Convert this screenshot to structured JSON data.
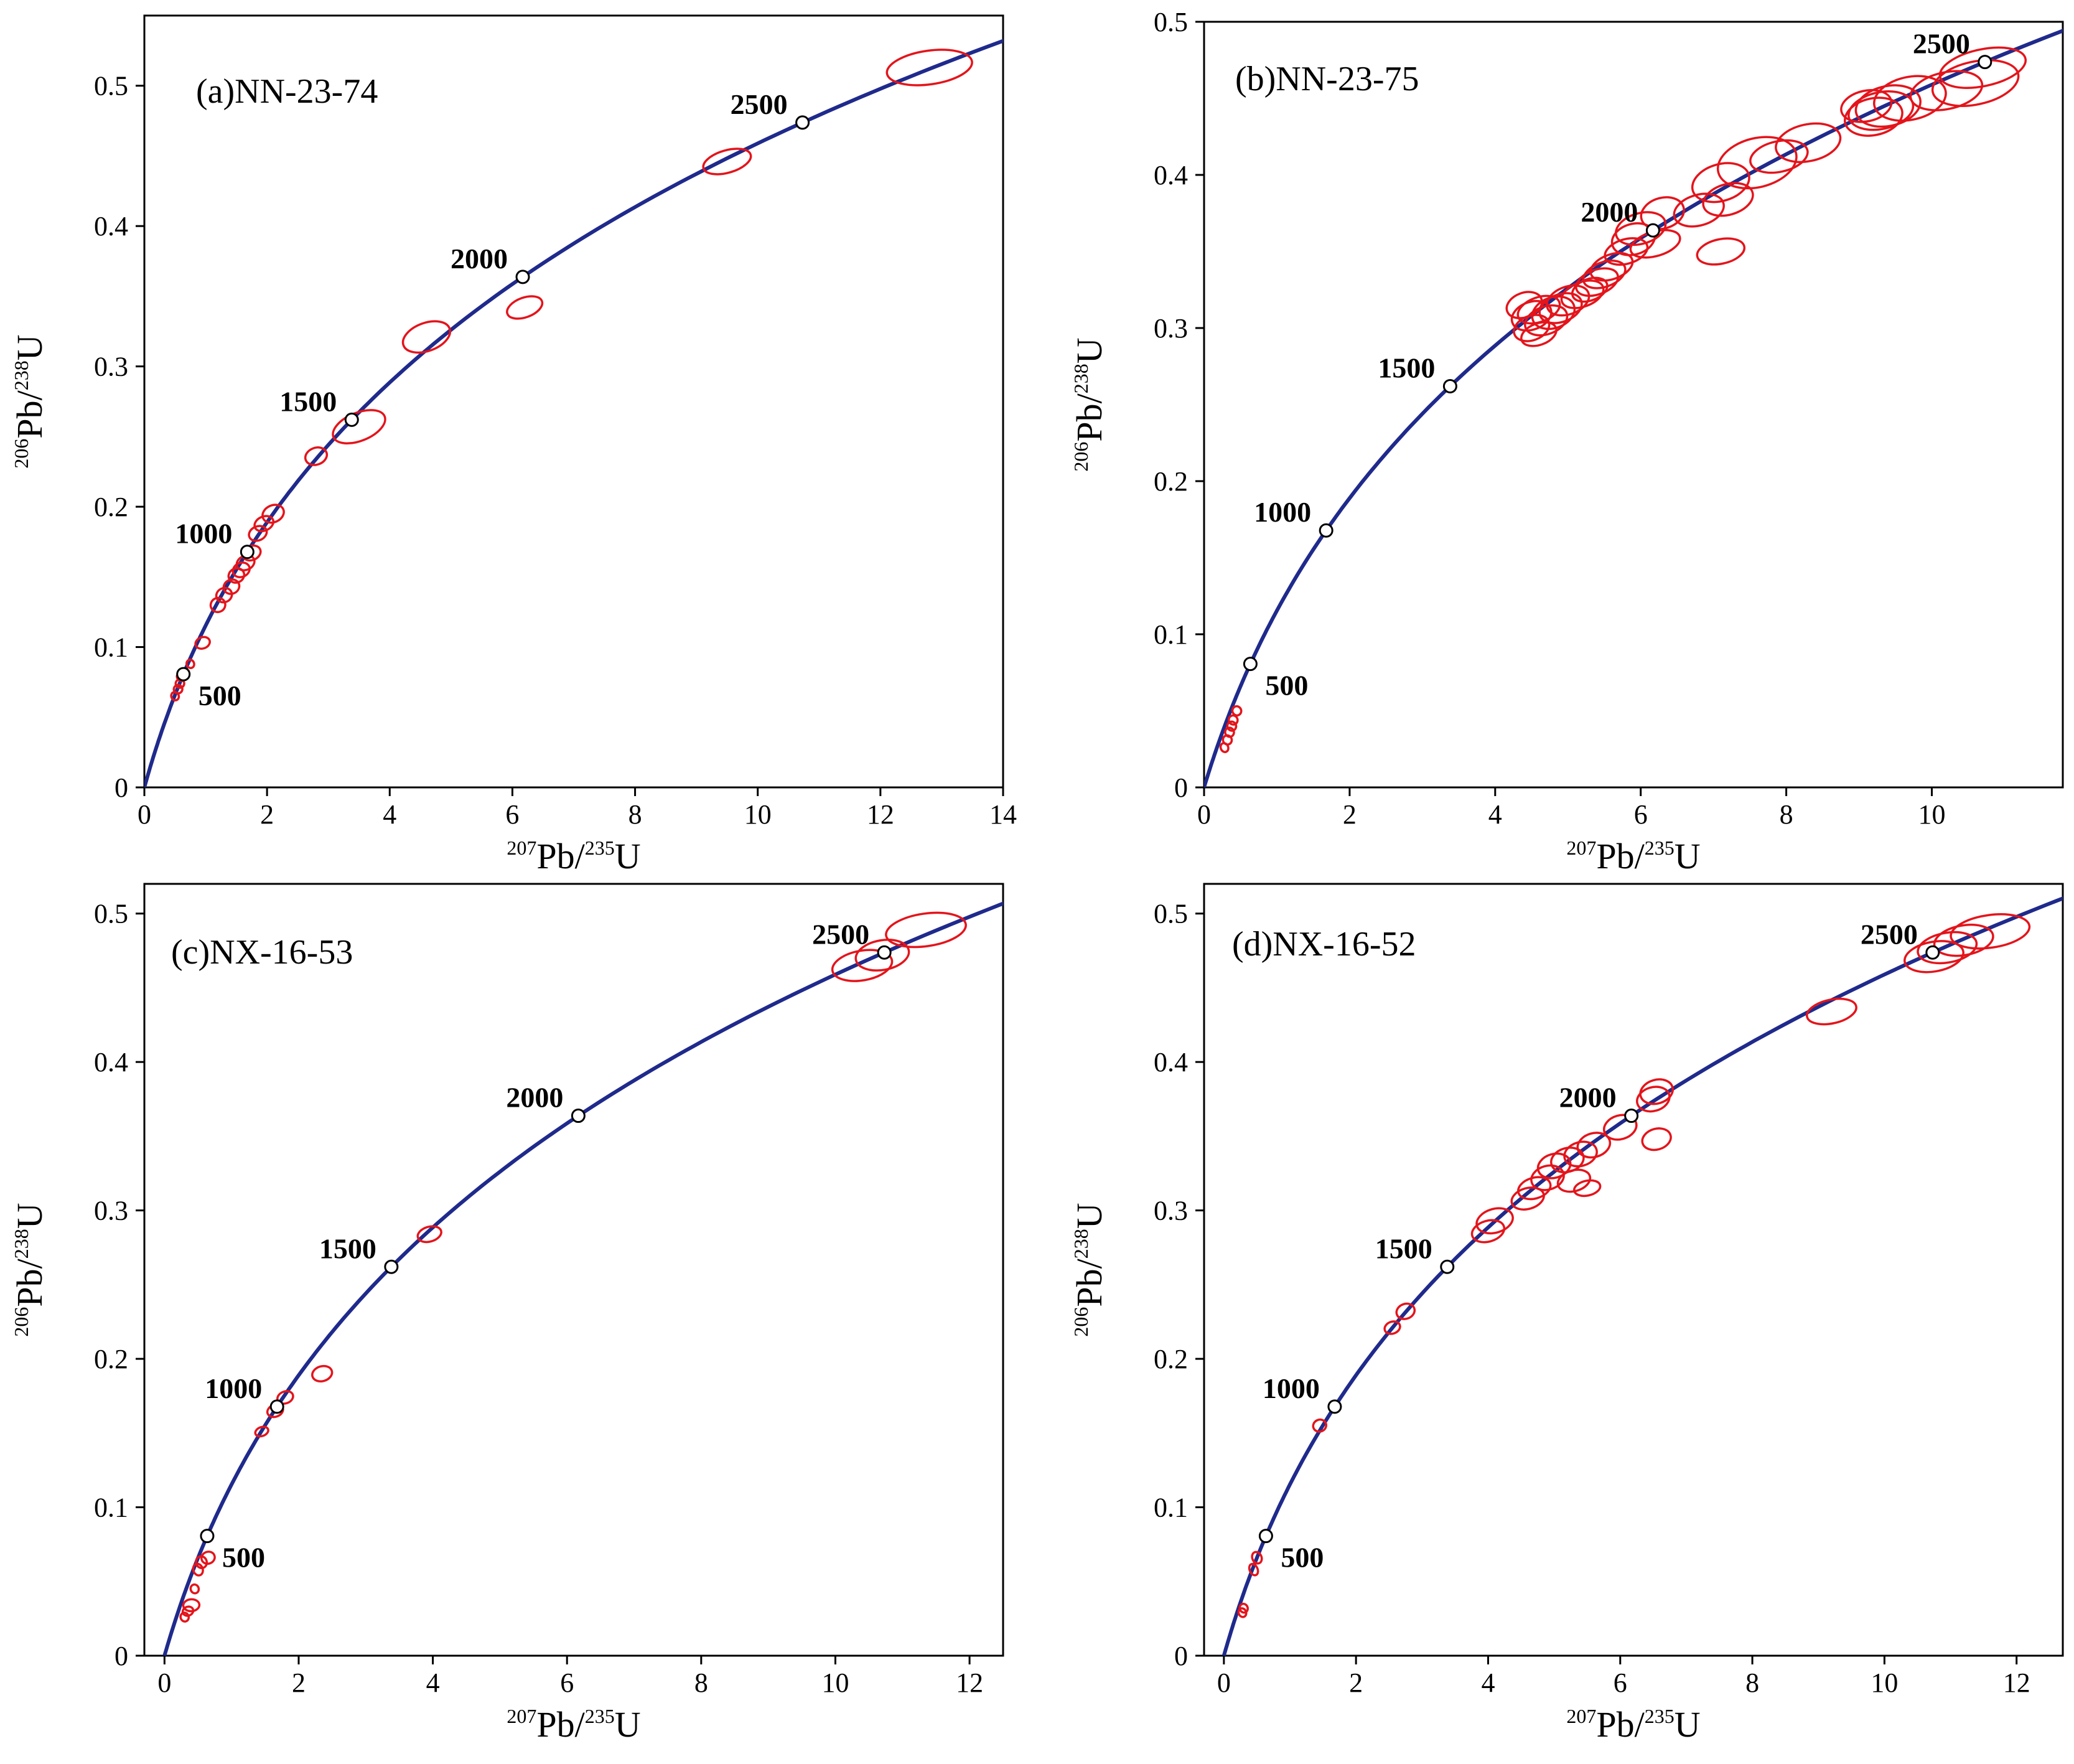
{
  "colors": {
    "concordia": "#1f2a8c",
    "ellipse": "#e4141b",
    "marker_fill": "#ffffff",
    "axis": "#000000"
  },
  "axis_titles": {
    "x": {
      "sup1": "207",
      "main1": "Pb/",
      "sup2": "235",
      "main2": "U"
    },
    "y": {
      "sup1": "206",
      "main1": "Pb/",
      "sup2": "238",
      "main2": "U"
    }
  },
  "chart_data": [
    {
      "type": "scatter",
      "subtype": "concordia-diagram",
      "title": "(a)NN-23-74",
      "xlabel": "207Pb/235U",
      "ylabel": "206Pb/238U",
      "xlim": [
        0,
        14
      ],
      "ylim": [
        0,
        0.55
      ],
      "xticks": [
        0,
        2,
        4,
        6,
        8,
        10,
        12,
        14
      ],
      "yticks": [
        0,
        0.1,
        0.2,
        0.3,
        0.4,
        0.5
      ],
      "concordia_ages_Ma": [
        500,
        1000,
        1500,
        2000,
        2500
      ],
      "age_label_side": [
        "right",
        "left",
        "left",
        "left",
        "left"
      ],
      "ellipses": [
        {
          "x": 12.8,
          "y": 0.513,
          "rx": 0.7,
          "ry": 0.012,
          "tilt": 0.2
        },
        {
          "x": 9.5,
          "y": 0.446,
          "rx": 0.4,
          "ry": 0.008,
          "tilt": 0.4
        },
        {
          "x": 4.6,
          "y": 0.321,
          "rx": 0.4,
          "ry": 0.01,
          "tilt": 0.5
        },
        {
          "x": 6.2,
          "y": 0.342,
          "rx": 0.3,
          "ry": 0.007,
          "tilt": 0.5
        },
        {
          "x": 3.5,
          "y": 0.257,
          "rx": 0.45,
          "ry": 0.01,
          "tilt": 0.55
        },
        {
          "x": 2.8,
          "y": 0.236,
          "rx": 0.18,
          "ry": 0.006,
          "tilt": 0.5
        },
        {
          "x": 2.1,
          "y": 0.195,
          "rx": 0.18,
          "ry": 0.006,
          "tilt": 0.6
        },
        {
          "x": 1.95,
          "y": 0.188,
          "rx": 0.16,
          "ry": 0.005,
          "tilt": 0.6
        },
        {
          "x": 1.85,
          "y": 0.181,
          "rx": 0.15,
          "ry": 0.005,
          "tilt": 0.6
        },
        {
          "x": 1.75,
          "y": 0.167,
          "rx": 0.15,
          "ry": 0.005,
          "tilt": 0.6
        },
        {
          "x": 1.65,
          "y": 0.16,
          "rx": 0.15,
          "ry": 0.005,
          "tilt": 0.6
        },
        {
          "x": 1.58,
          "y": 0.155,
          "rx": 0.14,
          "ry": 0.005,
          "tilt": 0.6
        },
        {
          "x": 1.5,
          "y": 0.151,
          "rx": 0.13,
          "ry": 0.005,
          "tilt": 0.6
        },
        {
          "x": 1.42,
          "y": 0.143,
          "rx": 0.13,
          "ry": 0.005,
          "tilt": 0.6
        },
        {
          "x": 1.3,
          "y": 0.137,
          "rx": 0.13,
          "ry": 0.005,
          "tilt": 0.6
        },
        {
          "x": 1.2,
          "y": 0.13,
          "rx": 0.12,
          "ry": 0.005,
          "tilt": 0.6
        },
        {
          "x": 0.95,
          "y": 0.103,
          "rx": 0.12,
          "ry": 0.004,
          "tilt": 0.5
        },
        {
          "x": 0.75,
          "y": 0.088,
          "rx": 0.06,
          "ry": 0.003,
          "tilt": 0.6
        },
        {
          "x": 0.6,
          "y": 0.079,
          "rx": 0.07,
          "ry": 0.003,
          "tilt": 0.6
        },
        {
          "x": 0.58,
          "y": 0.074,
          "rx": 0.07,
          "ry": 0.003,
          "tilt": 0.6
        },
        {
          "x": 0.55,
          "y": 0.07,
          "rx": 0.07,
          "ry": 0.003,
          "tilt": 0.6
        },
        {
          "x": 0.5,
          "y": 0.065,
          "rx": 0.06,
          "ry": 0.003,
          "tilt": 0.6
        }
      ]
    },
    {
      "type": "scatter",
      "subtype": "concordia-diagram",
      "title": "(b)NN-23-75",
      "xlabel": "207Pb/235U",
      "ylabel": "206Pb/238U",
      "xlim": [
        0,
        11.8
      ],
      "ylim": [
        0,
        0.5
      ],
      "xticks": [
        0,
        2,
        4,
        6,
        8,
        10
      ],
      "yticks": [
        0,
        0.1,
        0.2,
        0.3,
        0.4,
        0.5
      ],
      "concordia_ages_Ma": [
        500,
        1000,
        1500,
        2000,
        2500
      ],
      "age_label_side": [
        "right",
        "left",
        "left",
        "left",
        "left"
      ],
      "ellipses": [
        {
          "x": 10.7,
          "y": 0.47,
          "rx": 0.6,
          "ry": 0.012,
          "tilt": 0.3
        },
        {
          "x": 10.6,
          "y": 0.46,
          "rx": 0.6,
          "ry": 0.014,
          "tilt": 0.3
        },
        {
          "x": 10.2,
          "y": 0.455,
          "rx": 0.5,
          "ry": 0.012,
          "tilt": 0.3
        },
        {
          "x": 9.7,
          "y": 0.45,
          "rx": 0.5,
          "ry": 0.014,
          "tilt": 0.3
        },
        {
          "x": 9.4,
          "y": 0.445,
          "rx": 0.45,
          "ry": 0.013,
          "tilt": 0.3
        },
        {
          "x": 9.3,
          "y": 0.442,
          "rx": 0.45,
          "ry": 0.012,
          "tilt": 0.3
        },
        {
          "x": 9.2,
          "y": 0.438,
          "rx": 0.4,
          "ry": 0.012,
          "tilt": 0.3
        },
        {
          "x": 9.1,
          "y": 0.445,
          "rx": 0.35,
          "ry": 0.01,
          "tilt": 0.3
        },
        {
          "x": 8.3,
          "y": 0.421,
          "rx": 0.45,
          "ry": 0.012,
          "tilt": 0.3
        },
        {
          "x": 7.9,
          "y": 0.412,
          "rx": 0.4,
          "ry": 0.01,
          "tilt": 0.3
        },
        {
          "x": 7.6,
          "y": 0.408,
          "rx": 0.55,
          "ry": 0.016,
          "tilt": 0.35
        },
        {
          "x": 7.1,
          "y": 0.395,
          "rx": 0.4,
          "ry": 0.012,
          "tilt": 0.4
        },
        {
          "x": 7.2,
          "y": 0.384,
          "rx": 0.35,
          "ry": 0.01,
          "tilt": 0.4
        },
        {
          "x": 7.1,
          "y": 0.35,
          "rx": 0.33,
          "ry": 0.008,
          "tilt": 0.3
        },
        {
          "x": 6.8,
          "y": 0.377,
          "rx": 0.35,
          "ry": 0.01,
          "tilt": 0.4
        },
        {
          "x": 6.3,
          "y": 0.375,
          "rx": 0.3,
          "ry": 0.01,
          "tilt": 0.4
        },
        {
          "x": 6.0,
          "y": 0.365,
          "rx": 0.35,
          "ry": 0.01,
          "tilt": 0.4
        },
        {
          "x": 5.9,
          "y": 0.358,
          "rx": 0.3,
          "ry": 0.01,
          "tilt": 0.4
        },
        {
          "x": 6.2,
          "y": 0.355,
          "rx": 0.35,
          "ry": 0.008,
          "tilt": 0.4
        },
        {
          "x": 5.8,
          "y": 0.35,
          "rx": 0.3,
          "ry": 0.008,
          "tilt": 0.4
        },
        {
          "x": 5.6,
          "y": 0.34,
          "rx": 0.3,
          "ry": 0.008,
          "tilt": 0.5
        },
        {
          "x": 5.5,
          "y": 0.335,
          "rx": 0.3,
          "ry": 0.008,
          "tilt": 0.5
        },
        {
          "x": 5.4,
          "y": 0.33,
          "rx": 0.3,
          "ry": 0.008,
          "tilt": 0.5
        },
        {
          "x": 5.3,
          "y": 0.325,
          "rx": 0.25,
          "ry": 0.007,
          "tilt": 0.5
        },
        {
          "x": 5.2,
          "y": 0.322,
          "rx": 0.3,
          "ry": 0.008,
          "tilt": 0.5
        },
        {
          "x": 5.0,
          "y": 0.318,
          "rx": 0.3,
          "ry": 0.009,
          "tilt": 0.5
        },
        {
          "x": 4.9,
          "y": 0.313,
          "rx": 0.3,
          "ry": 0.009,
          "tilt": 0.5
        },
        {
          "x": 4.8,
          "y": 0.31,
          "rx": 0.3,
          "ry": 0.01,
          "tilt": 0.5
        },
        {
          "x": 4.7,
          "y": 0.305,
          "rx": 0.3,
          "ry": 0.009,
          "tilt": 0.5
        },
        {
          "x": 4.6,
          "y": 0.312,
          "rx": 0.3,
          "ry": 0.008,
          "tilt": 0.5
        },
        {
          "x": 4.5,
          "y": 0.308,
          "rx": 0.28,
          "ry": 0.009,
          "tilt": 0.5
        },
        {
          "x": 4.5,
          "y": 0.3,
          "rx": 0.25,
          "ry": 0.008,
          "tilt": 0.5
        },
        {
          "x": 4.6,
          "y": 0.296,
          "rx": 0.25,
          "ry": 0.007,
          "tilt": 0.5
        },
        {
          "x": 4.4,
          "y": 0.315,
          "rx": 0.25,
          "ry": 0.008,
          "tilt": 0.5
        },
        {
          "x": 0.45,
          "y": 0.05,
          "rx": 0.06,
          "ry": 0.003,
          "tilt": 0.6
        },
        {
          "x": 0.4,
          "y": 0.044,
          "rx": 0.06,
          "ry": 0.003,
          "tilt": 0.6
        },
        {
          "x": 0.38,
          "y": 0.04,
          "rx": 0.06,
          "ry": 0.003,
          "tilt": 0.6
        },
        {
          "x": 0.35,
          "y": 0.036,
          "rx": 0.06,
          "ry": 0.003,
          "tilt": 0.6
        },
        {
          "x": 0.32,
          "y": 0.031,
          "rx": 0.06,
          "ry": 0.003,
          "tilt": 0.6
        },
        {
          "x": 0.28,
          "y": 0.026,
          "rx": 0.05,
          "ry": 0.003,
          "tilt": 0.6
        }
      ]
    },
    {
      "type": "scatter",
      "subtype": "concordia-diagram",
      "title": "(c)NX-16-53",
      "xlabel": "207Pb/235U",
      "ylabel": "206Pb/238U",
      "xlim": [
        -0.3,
        12.5
      ],
      "ylim": [
        0,
        0.52
      ],
      "xticks": [
        0,
        2,
        4,
        6,
        8,
        10,
        12
      ],
      "yticks": [
        0,
        0.1,
        0.2,
        0.3,
        0.4,
        0.5
      ],
      "concordia_ages_Ma": [
        500,
        1000,
        1500,
        2000,
        2500
      ],
      "age_label_side": [
        "right",
        "left",
        "left",
        "left",
        "left"
      ],
      "ellipses": [
        {
          "x": 11.35,
          "y": 0.489,
          "rx": 0.6,
          "ry": 0.011,
          "tilt": 0.2
        },
        {
          "x": 10.7,
          "y": 0.472,
          "rx": 0.4,
          "ry": 0.01,
          "tilt": 0.25
        },
        {
          "x": 10.4,
          "y": 0.465,
          "rx": 0.45,
          "ry": 0.01,
          "tilt": 0.25
        },
        {
          "x": 3.95,
          "y": 0.284,
          "rx": 0.18,
          "ry": 0.005,
          "tilt": 0.4
        },
        {
          "x": 2.35,
          "y": 0.19,
          "rx": 0.15,
          "ry": 0.005,
          "tilt": 0.4
        },
        {
          "x": 1.8,
          "y": 0.174,
          "rx": 0.12,
          "ry": 0.004,
          "tilt": 0.5
        },
        {
          "x": 1.65,
          "y": 0.165,
          "rx": 0.12,
          "ry": 0.004,
          "tilt": 0.5
        },
        {
          "x": 1.45,
          "y": 0.151,
          "rx": 0.1,
          "ry": 0.003,
          "tilt": 0.5
        },
        {
          "x": 0.65,
          "y": 0.066,
          "rx": 0.1,
          "ry": 0.004,
          "tilt": 0.5
        },
        {
          "x": 0.55,
          "y": 0.063,
          "rx": 0.08,
          "ry": 0.004,
          "tilt": 0.5
        },
        {
          "x": 0.5,
          "y": 0.058,
          "rx": 0.07,
          "ry": 0.004,
          "tilt": 0.5
        },
        {
          "x": 0.45,
          "y": 0.045,
          "rx": 0.06,
          "ry": 0.003,
          "tilt": 0.5
        },
        {
          "x": 0.4,
          "y": 0.034,
          "rx": 0.12,
          "ry": 0.004,
          "tilt": 0.1
        },
        {
          "x": 0.35,
          "y": 0.03,
          "rx": 0.08,
          "ry": 0.003,
          "tilt": 0.5
        },
        {
          "x": 0.3,
          "y": 0.026,
          "rx": 0.06,
          "ry": 0.003,
          "tilt": 0.5
        }
      ]
    },
    {
      "type": "scatter",
      "subtype": "concordia-diagram",
      "title": "(d)NX-16-52",
      "xlabel": "207Pb/235U",
      "ylabel": "206Pb/238U",
      "xlim": [
        -0.3,
        12.7
      ],
      "ylim": [
        0,
        0.52
      ],
      "xticks": [
        0,
        2,
        4,
        6,
        8,
        10,
        12
      ],
      "yticks": [
        0,
        0.1,
        0.2,
        0.3,
        0.4,
        0.5
      ],
      "concordia_ages_Ma": [
        500,
        1000,
        1500,
        2000,
        2500
      ],
      "age_label_side": [
        "right",
        "left",
        "left",
        "left",
        "left"
      ],
      "ellipses": [
        {
          "x": 11.6,
          "y": 0.488,
          "rx": 0.6,
          "ry": 0.011,
          "tilt": 0.2
        },
        {
          "x": 11.2,
          "y": 0.482,
          "rx": 0.45,
          "ry": 0.01,
          "tilt": 0.25
        },
        {
          "x": 10.95,
          "y": 0.477,
          "rx": 0.45,
          "ry": 0.01,
          "tilt": 0.25
        },
        {
          "x": 10.75,
          "y": 0.471,
          "rx": 0.45,
          "ry": 0.01,
          "tilt": 0.25
        },
        {
          "x": 9.2,
          "y": 0.434,
          "rx": 0.38,
          "ry": 0.008,
          "tilt": 0.3
        },
        {
          "x": 6.55,
          "y": 0.38,
          "rx": 0.25,
          "ry": 0.008,
          "tilt": 0.4
        },
        {
          "x": 6.5,
          "y": 0.375,
          "rx": 0.25,
          "ry": 0.008,
          "tilt": 0.4
        },
        {
          "x": 6.55,
          "y": 0.348,
          "rx": 0.22,
          "ry": 0.007,
          "tilt": 0.4
        },
        {
          "x": 6.0,
          "y": 0.356,
          "rx": 0.25,
          "ry": 0.008,
          "tilt": 0.4
        },
        {
          "x": 5.6,
          "y": 0.344,
          "rx": 0.25,
          "ry": 0.008,
          "tilt": 0.4
        },
        {
          "x": 5.4,
          "y": 0.338,
          "rx": 0.25,
          "ry": 0.008,
          "tilt": 0.4
        },
        {
          "x": 5.2,
          "y": 0.334,
          "rx": 0.25,
          "ry": 0.008,
          "tilt": 0.4
        },
        {
          "x": 5.0,
          "y": 0.33,
          "rx": 0.25,
          "ry": 0.008,
          "tilt": 0.4
        },
        {
          "x": 4.9,
          "y": 0.322,
          "rx": 0.25,
          "ry": 0.008,
          "tilt": 0.4
        },
        {
          "x": 5.3,
          "y": 0.32,
          "rx": 0.25,
          "ry": 0.007,
          "tilt": 0.4
        },
        {
          "x": 5.5,
          "y": 0.315,
          "rx": 0.2,
          "ry": 0.005,
          "tilt": 0.3
        },
        {
          "x": 4.7,
          "y": 0.315,
          "rx": 0.25,
          "ry": 0.007,
          "tilt": 0.4
        },
        {
          "x": 4.6,
          "y": 0.308,
          "rx": 0.25,
          "ry": 0.007,
          "tilt": 0.4
        },
        {
          "x": 4.1,
          "y": 0.293,
          "rx": 0.28,
          "ry": 0.008,
          "tilt": 0.4
        },
        {
          "x": 4.0,
          "y": 0.286,
          "rx": 0.25,
          "ry": 0.007,
          "tilt": 0.4
        },
        {
          "x": 2.75,
          "y": 0.232,
          "rx": 0.14,
          "ry": 0.005,
          "tilt": 0.5
        },
        {
          "x": 2.55,
          "y": 0.221,
          "rx": 0.12,
          "ry": 0.004,
          "tilt": 0.5
        },
        {
          "x": 1.45,
          "y": 0.155,
          "rx": 0.1,
          "ry": 0.004,
          "tilt": 0.5
        },
        {
          "x": 0.5,
          "y": 0.066,
          "rx": 0.07,
          "ry": 0.004,
          "tilt": 0.6
        },
        {
          "x": 0.45,
          "y": 0.058,
          "rx": 0.06,
          "ry": 0.004,
          "tilt": 0.6
        },
        {
          "x": 0.3,
          "y": 0.032,
          "rx": 0.06,
          "ry": 0.003,
          "tilt": 0.6
        },
        {
          "x": 0.28,
          "y": 0.029,
          "rx": 0.05,
          "ry": 0.003,
          "tilt": 0.6
        }
      ]
    }
  ]
}
